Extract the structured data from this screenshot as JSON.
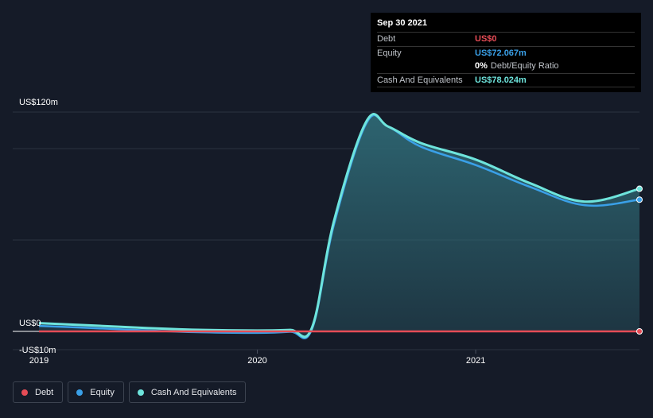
{
  "tooltip": {
    "date": "Sep 30 2021",
    "debt_label": "Debt",
    "debt_value": "US$0",
    "equity_label": "Equity",
    "equity_value": "US$72.067m",
    "ratio_value": "0%",
    "ratio_label": "Debt/Equity Ratio",
    "cash_label": "Cash And Equivalents",
    "cash_value": "US$78.024m"
  },
  "legend": [
    {
      "label": "Debt",
      "color": "#e64c56"
    },
    {
      "label": "Equity",
      "color": "#3aa0e8"
    },
    {
      "label": "Cash And Equivalents",
      "color": "#6ee4dc"
    }
  ],
  "colors": {
    "background": "#151b28",
    "debt": "#e64c56",
    "equity": "#3aa0e8",
    "cash": "#6ee4dc",
    "area": "#2d6470"
  },
  "chart_data": {
    "type": "area",
    "ylim": [
      -10,
      120
    ],
    "y_tick_labels": [
      {
        "value": 120,
        "label": "US$120m"
      },
      {
        "value": 0,
        "label": "US$0"
      },
      {
        "value": -10,
        "label": "-US$10m"
      }
    ],
    "gridlines": [
      120,
      100,
      50,
      0
    ],
    "x_ticks": [
      {
        "value": 2019.0,
        "label": "2019"
      },
      {
        "value": 2020.0,
        "label": "2020"
      },
      {
        "value": 2021.0,
        "label": "2021"
      }
    ],
    "xlim": [
      2018.88,
      2021.75
    ],
    "series": [
      {
        "name": "Debt",
        "x": [
          2019.0,
          2021.75
        ],
        "values": [
          0,
          0
        ]
      },
      {
        "name": "Equity",
        "x": [
          2019.0,
          2019.25,
          2019.5,
          2019.75,
          2020.0,
          2020.15,
          2020.25,
          2020.35,
          2020.5,
          2020.6,
          2020.75,
          2021.0,
          2021.25,
          2021.5,
          2021.75
        ],
        "values": [
          3,
          1.8,
          0.5,
          -0.5,
          -0.8,
          -0.2,
          1.2,
          58,
          114,
          112,
          101,
          91,
          79,
          69,
          72.067
        ]
      },
      {
        "name": "Cash And Equivalents",
        "x": [
          2019.0,
          2019.25,
          2019.5,
          2019.75,
          2020.0,
          2020.15,
          2020.25,
          2020.35,
          2020.5,
          2020.6,
          2020.75,
          2021.0,
          2021.25,
          2021.5,
          2021.75
        ],
        "values": [
          4.5,
          3.2,
          1.8,
          0.8,
          0.5,
          0.8,
          2,
          60,
          115,
          112,
          103,
          94,
          81,
          71,
          78.024
        ]
      }
    ]
  }
}
